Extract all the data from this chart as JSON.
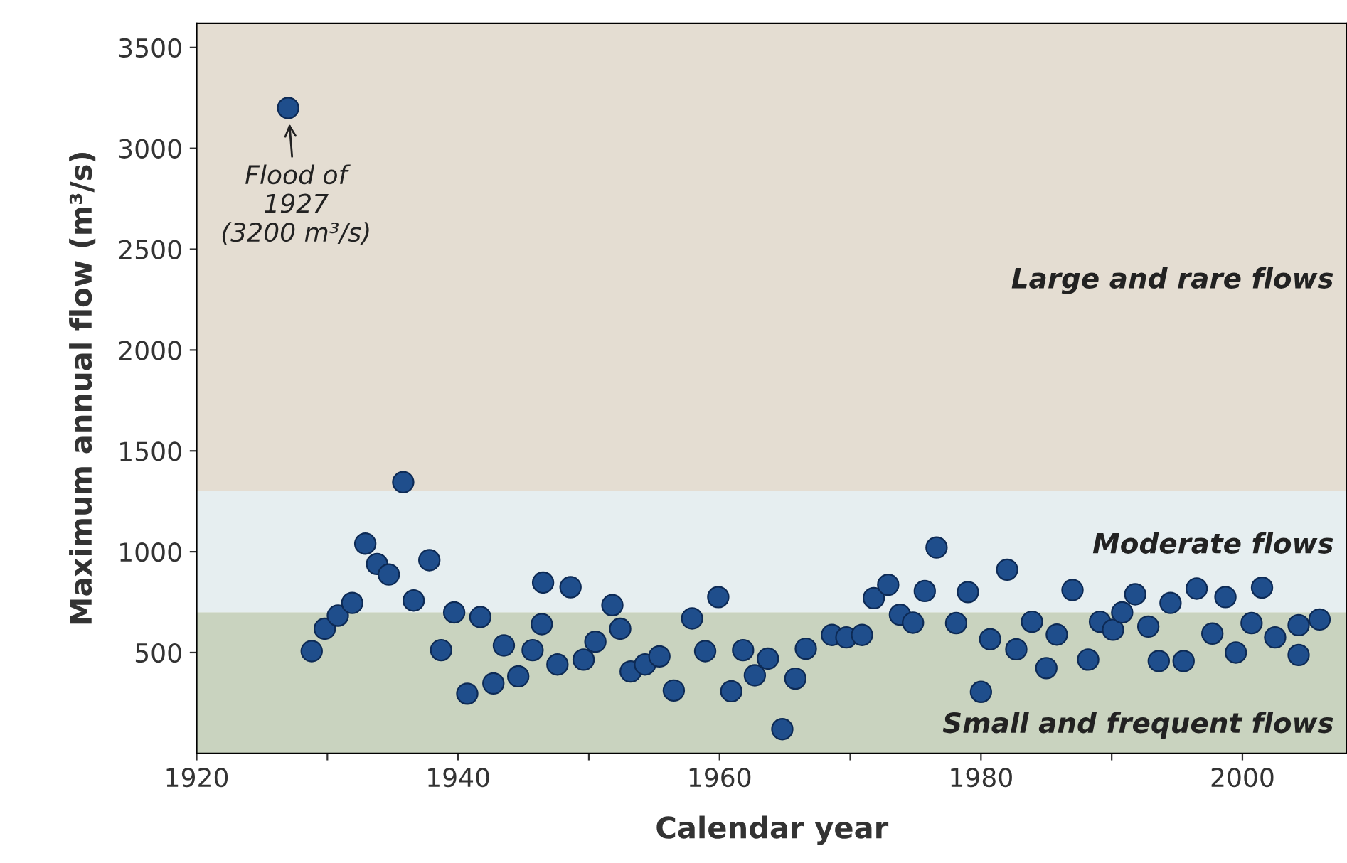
{
  "chart_data": {
    "type": "scatter",
    "xlabel": "Calendar year",
    "ylabel": "Maximum annual flow (m³/s)",
    "xlim": [
      1920,
      2008
    ],
    "ylim": [
      0,
      3620
    ],
    "xticks": [
      1920,
      {
        "value": 1930,
        "label": null
      },
      1940,
      {
        "value": 1950,
        "label": null
      },
      1960,
      {
        "value": 1970,
        "label": null
      },
      1980,
      {
        "value": 1990,
        "label": null
      },
      2000
    ],
    "yticks": [
      500,
      1000,
      1500,
      2000,
      2500,
      3000,
      3500
    ],
    "grid": false,
    "legend": false,
    "marker": "circle",
    "bands": [
      {
        "axis": "y",
        "from": 0,
        "to": 700,
        "label": "Small and frequent flows",
        "color": "#c9d3bf"
      },
      {
        "axis": "y",
        "from": 700,
        "to": 1300,
        "label": "Moderate flows",
        "color": "#e6eef0"
      },
      {
        "axis": "y",
        "from": 1300,
        "to": 3620,
        "label": "Large and rare flows",
        "color": "#e4ddd2"
      }
    ],
    "annotations": [
      {
        "text": "Flood of\n1927\n(3200 m³/s)",
        "x": 1927,
        "y": 3200
      }
    ],
    "series": [
      {
        "color": "#1f4e8c",
        "x": [
          1927,
          1935.8,
          1928.8,
          1929.8,
          1930.8,
          1931.9,
          1932.9,
          1933.8,
          1934.7,
          1937.8,
          1936.6,
          1938.7,
          1939.7,
          1940.7,
          1941.7,
          1942.7,
          1943.5,
          1944.6,
          1945.7,
          1946.5,
          1946.4,
          1947.6,
          1948.6,
          1949.6,
          1950.5,
          1951.8,
          1952.4,
          1953.2,
          1954.3,
          1955.4,
          1956.5,
          1957.9,
          1958.9,
          1959.9,
          1960.9,
          1961.8,
          1962.7,
          1963.7,
          1964.8,
          1965.8,
          1966.6,
          1968.6,
          1969.7,
          1970.9,
          1971.8,
          1972.9,
          1973.8,
          1974.8,
          1975.7,
          1976.6,
          1978.1,
          1979.0,
          1980.0,
          1980.7,
          1982.0,
          1982.7,
          1983.9,
          1985.0,
          1985.8,
          1987.0,
          1988.2,
          1989.1,
          1990.1,
          1990.8,
          1991.8,
          1992.8,
          1993.6,
          1994.5,
          1995.5,
          1996.5,
          1997.7,
          1998.7,
          1999.5,
          2000.7,
          2001.5,
          2002.5,
          2004.3,
          2004.3,
          2005.9
        ],
        "values": [
          3200,
          1345,
          507,
          618,
          683,
          746,
          1040,
          939,
          887,
          958,
          758,
          512,
          699,
          296,
          676,
          347,
          535,
          382,
          512,
          847,
          641,
          441,
          824,
          465,
          554,
          735,
          618,
          406,
          441,
          481,
          312,
          669,
          507,
          775,
          308,
          512,
          387,
          470,
          120,
          371,
          519,
          587,
          575,
          587,
          770,
          836,
          688,
          648,
          805,
          1021,
          646,
          800,
          305,
          566,
          911,
          516,
          653,
          423,
          589,
          810,
          465,
          653,
          613,
          699,
          789,
          629,
          458,
          746,
          458,
          817,
          594,
          775,
          500,
          646,
          822,
          575,
          636,
          488,
          664
        ]
      }
    ]
  }
}
